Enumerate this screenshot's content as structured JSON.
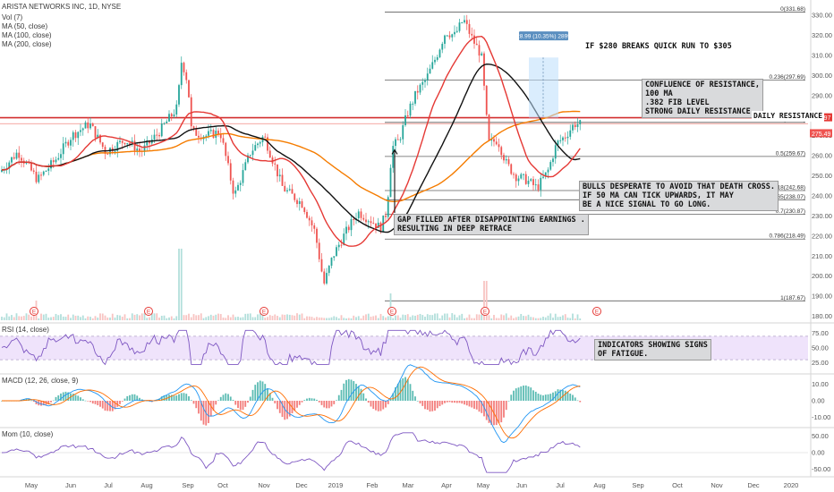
{
  "header": {
    "symbol_line": "ARISTA NETWORKS INC, 1D, NYSE",
    "vol": "Vol (7)",
    "ma50": "MA (50, close)",
    "ma100": "MA (100, close)",
    "ma200": "MA (200, close)"
  },
  "panes": {
    "rsi_title": "RSI (14, close)",
    "macd_title": "MACD (12, 26, close, 9)",
    "mom_title": "Mom (10, close)"
  },
  "annotations": {
    "quick_run": "IF $280 BREAKS QUICK RUN TO $305",
    "confluence": "CONFLUENCE OF RESISTANCE,\n100 MA\n.382 FIB LEVEL\nSTRONG DAILY RESISTANCE",
    "daily_resistance": "DAILY RESISTANCE",
    "death_cross": "BULLS DESPERATE TO AVOID THAT DEATH CROSS.\nIF 50 MA CAN TICK UPWARDS, IT MAY\nBE A NICE SIGNAL TO GO LONG.",
    "gap": "GAP FILLED AFTER DISAPPOINTING EARNINGS .\nRESULTING IN DEEP RETRACE",
    "fatigue": "INDICATORS SHOWING SIGNS\nOF FATIGUE.",
    "measure": "28.99 (10.35%) 2899"
  },
  "colors": {
    "up": "#26a69a",
    "down": "#ef5350",
    "ma50": "#e53935",
    "ma100": "#111111",
    "ma200": "#f57c00",
    "resistance": "#d32f2f",
    "rsi": "#7e57c2",
    "rsi_band": "#efe3fb",
    "macd": "#2196f3",
    "signal": "#ff6d00",
    "mom": "#7e57c2"
  },
  "earnings_marker": "E",
  "chart_data": [
    {
      "type": "candlestick",
      "title": "ARISTA NETWORKS INC, 1D, NYSE",
      "x_ticks": [
        "May",
        "Jun",
        "Jul",
        "Aug",
        "Sep",
        "Oct",
        "Nov",
        "Dec",
        "2019",
        "Feb",
        "Mar",
        "Apr",
        "May",
        "Jun",
        "Jul",
        "Aug",
        "Sep",
        "Oct",
        "Nov",
        "Dec",
        "2020"
      ],
      "y_ticks": [
        180,
        190,
        200,
        210,
        220,
        230,
        240,
        250,
        260,
        270,
        280,
        290,
        300,
        310,
        320,
        330
      ],
      "ylim": [
        178,
        335
      ],
      "last_price": "275.49",
      "last_price_label": "275.49",
      "resistance_price": "278.97",
      "resistance_label": "278.97",
      "daily_resistance_level": 279,
      "fib_levels": [
        {
          "ratio": "0",
          "price": 331.68
        },
        {
          "ratio": "0.236",
          "price": 297.69
        },
        {
          "ratio": "0.382",
          "price": 276.66
        },
        {
          "ratio": "0.5",
          "price": 259.67
        },
        {
          "ratio": "0.618",
          "price": 242.68
        },
        {
          "ratio": "0.65",
          "price": 238.07
        },
        {
          "ratio": "0.7",
          "price": 230.87
        },
        {
          "ratio": "0.786",
          "price": 218.49
        },
        {
          "ratio": "1",
          "price": 187.67
        }
      ],
      "series": [
        {
          "name": "MA (50, close)",
          "color": "#e53935"
        },
        {
          "name": "MA (100, close)",
          "color": "#111111"
        },
        {
          "name": "MA (200, close)",
          "color": "#f57c00"
        }
      ],
      "close_keypoints": [
        [
          "May",
          252
        ],
        [
          "Jun",
          274
        ],
        [
          "Jul",
          262
        ],
        [
          "Aug",
          265
        ],
        [
          "Aug",
          283
        ],
        [
          "Sep",
          307
        ],
        [
          "Sep",
          272
        ],
        [
          "Oct",
          270
        ],
        [
          "Oct",
          238
        ],
        [
          "Nov",
          268
        ],
        [
          "Nov",
          232
        ],
        [
          "Dec",
          240
        ],
        [
          "Dec",
          192
        ],
        [
          "2019",
          210
        ],
        [
          "2019",
          230
        ],
        [
          "Feb",
          218
        ],
        [
          "Feb",
          268
        ],
        [
          "Mar",
          284
        ],
        [
          "Mar",
          302
        ],
        [
          "Apr",
          328
        ],
        [
          "Apr",
          318
        ],
        [
          "May",
          312
        ],
        [
          "May",
          262
        ],
        [
          "Jun",
          250
        ],
        [
          "Jun",
          242
        ],
        [
          "Jul",
          262
        ],
        [
          "Jul",
          275.49
        ]
      ],
      "legend": "top-left",
      "grid": false
    },
    {
      "type": "line",
      "title": "RSI (14, close)",
      "y_ticks": [
        25,
        50,
        75
      ],
      "band": [
        30,
        70
      ],
      "last": 65
    },
    {
      "type": "line",
      "title": "MACD (12, 26, close, 9)",
      "y_ticks": [
        -10,
        0,
        10
      ],
      "series": [
        {
          "name": "MACD"
        },
        {
          "name": "Signal"
        },
        {
          "name": "Histogram"
        }
      ]
    },
    {
      "type": "line",
      "title": "Mom (10, close)",
      "y_ticks": [
        -50,
        0,
        50
      ]
    }
  ]
}
